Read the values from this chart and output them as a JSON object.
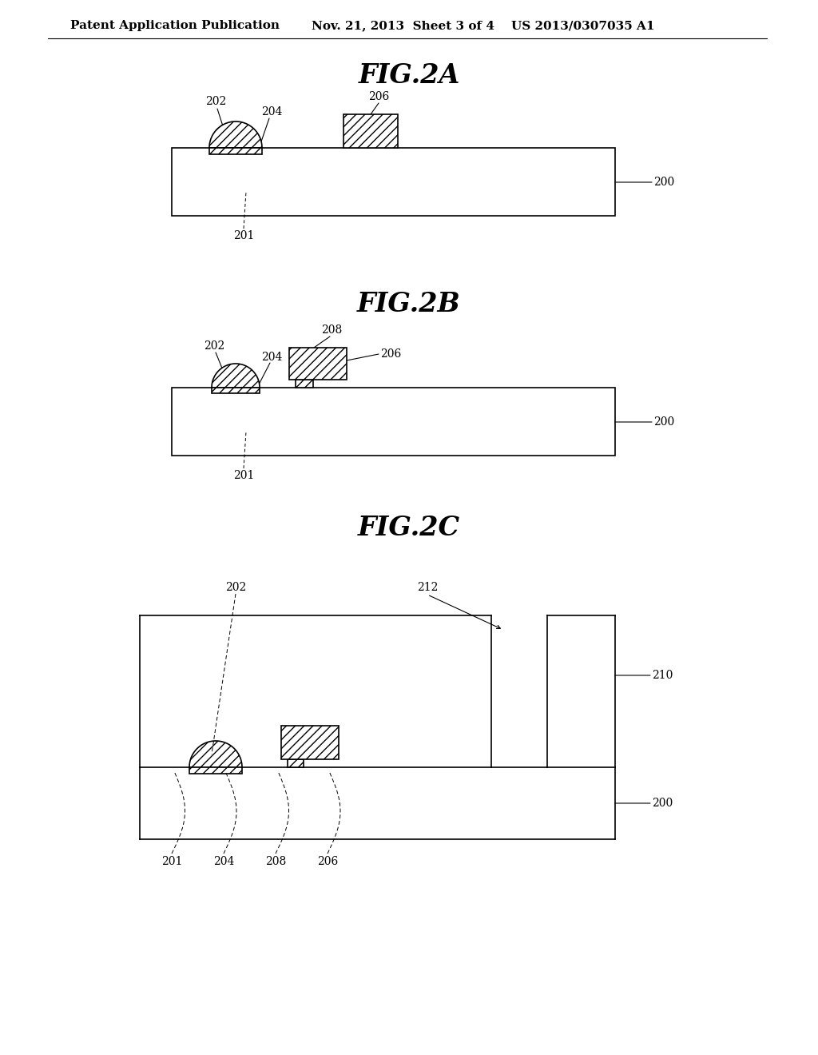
{
  "bg_color": "#ffffff",
  "header_text": "Patent Application Publication",
  "header_date": "Nov. 21, 2013  Sheet 3 of 4",
  "header_patent": "US 2013/0307035 A1",
  "fig2a_title": "FIG.2A",
  "fig2b_title": "FIG.2B",
  "fig2c_title": "FIG.2C",
  "line_color": "#000000",
  "label_fontsize": 10,
  "title_fontsize": 24,
  "header_fontsize": 11
}
